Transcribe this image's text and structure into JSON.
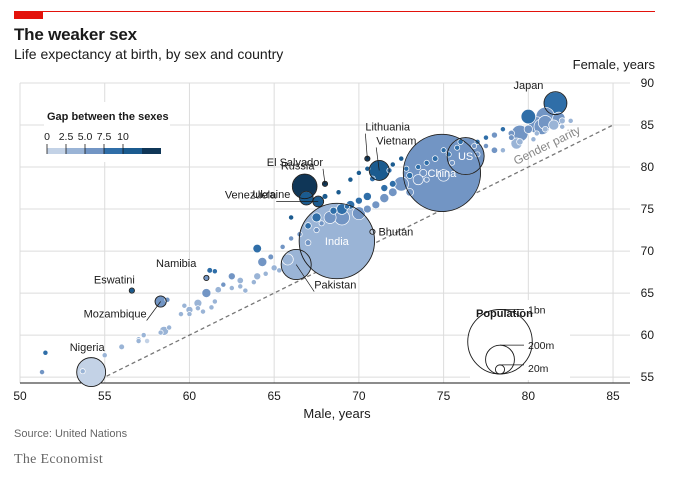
{
  "title": "The weaker sex",
  "subtitle": "Life expectancy at birth, by sex and country",
  "source": "Source: United Nations",
  "brand": "The Economist",
  "colors": {
    "accent": "#e3120b",
    "gap_scale": [
      "#c3d2e6",
      "#9ab4d6",
      "#7295c4",
      "#2f6ea8",
      "#1b5b8f",
      "#0f3657"
    ]
  },
  "chart_data": {
    "type": "scatter",
    "title": "The weaker sex",
    "subtitle": "Life expectancy at birth, by sex and country",
    "xlabel": "Male, years",
    "ylabel": "Female, years",
    "xlim": [
      50,
      86
    ],
    "ylim": [
      54.3,
      90
    ],
    "x_ticks": [
      50,
      55,
      60,
      65,
      70,
      75,
      80,
      85
    ],
    "y_ticks": [
      55,
      60,
      65,
      70,
      75,
      80,
      85,
      90
    ],
    "grid": true,
    "reference_line": {
      "label": "Gender parity",
      "from": 54,
      "to": 85
    },
    "gap_legend": {
      "title": "Gap between the sexes",
      "ticks": [
        "0",
        "2.5",
        "5.0",
        "7.5",
        "10"
      ]
    },
    "size_legend": {
      "title": "Population",
      "labels": [
        "1bn",
        "200m",
        "20m"
      ],
      "values_m": [
        1000,
        200,
        20
      ]
    },
    "labeled_points": [
      {
        "name": "Japan",
        "male": 81.6,
        "female": 87.6,
        "pop_m": 126,
        "gap": 6.0
      },
      {
        "name": "US",
        "male": 76.3,
        "female": 81.3,
        "pop_m": 329,
        "gap": 5.0
      },
      {
        "name": "China",
        "male": 74.9,
        "female": 79.3,
        "pop_m": 1434,
        "gap": 4.4
      },
      {
        "name": "Lithuania",
        "male": 70.5,
        "female": 81.0,
        "pop_m": 2.8,
        "gap": 10.5
      },
      {
        "name": "Vietnam",
        "male": 71.2,
        "female": 79.6,
        "pop_m": 96,
        "gap": 8.4
      },
      {
        "name": "El Salvador",
        "male": 68.0,
        "female": 78.0,
        "pop_m": 6.5,
        "gap": 10.0
      },
      {
        "name": "Russia",
        "male": 66.8,
        "female": 77.7,
        "pop_m": 146,
        "gap": 10.9
      },
      {
        "name": "Ukraine",
        "male": 66.9,
        "female": 76.3,
        "pop_m": 44,
        "gap": 9.4
      },
      {
        "name": "Venezuela",
        "male": 67.6,
        "female": 75.9,
        "pop_m": 28,
        "gap": 8.3
      },
      {
        "name": "Bhutan",
        "male": 70.8,
        "female": 72.3,
        "pop_m": 0.8,
        "gap": 1.5
      },
      {
        "name": "India",
        "male": 68.7,
        "female": 71.2,
        "pop_m": 1366,
        "gap": 2.5
      },
      {
        "name": "Pakistan",
        "male": 66.3,
        "female": 68.4,
        "pop_m": 217,
        "gap": 2.1
      },
      {
        "name": "Namibia",
        "male": 61.0,
        "female": 66.8,
        "pop_m": 2.5,
        "gap": 5.8
      },
      {
        "name": "Eswatini",
        "male": 56.6,
        "female": 65.3,
        "pop_m": 1.1,
        "gap": 8.7
      },
      {
        "name": "Mozambique",
        "male": 58.3,
        "female": 64.0,
        "pop_m": 30,
        "gap": 5.7
      },
      {
        "name": "Nigeria",
        "male": 54.2,
        "female": 55.6,
        "pop_m": 201,
        "gap": 1.4
      }
    ],
    "other_points": [
      [
        51.5,
        57.9,
        1,
        6.4
      ],
      [
        51.3,
        55.6,
        1,
        4.3
      ],
      [
        53.7,
        55.7,
        4,
        2.0
      ],
      [
        55.0,
        57.6,
        2,
        2.6
      ],
      [
        56.0,
        58.6,
        8,
        2.6
      ],
      [
        57.0,
        59.3,
        3,
        2.3
      ],
      [
        57.3,
        60.0,
        1,
        2.7
      ],
      [
        57.5,
        59.3,
        5,
        1.8
      ],
      [
        58.3,
        60.3,
        4,
        2.0
      ],
      [
        58.8,
        60.9,
        2,
        2.1
      ],
      [
        59.5,
        62.5,
        6,
        3.0
      ],
      [
        60.0,
        63.0,
        12,
        3.0
      ],
      [
        59.7,
        63.5,
        5,
        3.8
      ],
      [
        60.5,
        63.2,
        6,
        2.7
      ],
      [
        60.8,
        62.8,
        5,
        2.0
      ],
      [
        61.3,
        63.3,
        4,
        2.0
      ],
      [
        61.5,
        64.0,
        6,
        2.5
      ],
      [
        58.7,
        64.2,
        3,
        5.5
      ],
      [
        60.0,
        62.5,
        2,
        2.5
      ],
      [
        61.0,
        65.0,
        20,
        4.0
      ],
      [
        61.7,
        65.4,
        10,
        3.7
      ],
      [
        62.0,
        66.0,
        4,
        4.0
      ],
      [
        62.5,
        65.6,
        3,
        3.1
      ],
      [
        63.0,
        65.8,
        5,
        2.8
      ],
      [
        63.3,
        65.3,
        3,
        2.0
      ],
      [
        63.8,
        66.3,
        3,
        2.5
      ],
      [
        64.0,
        67.0,
        12,
        3.0
      ],
      [
        64.5,
        67.3,
        4,
        2.8
      ],
      [
        65.0,
        68.0,
        9,
        3.0
      ],
      [
        65.3,
        67.7,
        5,
        2.4
      ],
      [
        64.3,
        68.7,
        20,
        4.4
      ],
      [
        64.8,
        69.3,
        8,
        4.5
      ],
      [
        61.5,
        67.6,
        5,
        6.1
      ],
      [
        61.2,
        67.7,
        8,
        6.5
      ],
      [
        64.0,
        70.3,
        18,
        6.3
      ],
      [
        65.5,
        70.5,
        6,
        5.0
      ],
      [
        66.0,
        71.5,
        4,
        5.5
      ],
      [
        66.5,
        72.0,
        3,
        5.5
      ],
      [
        67.0,
        71.0,
        8,
        4.0
      ],
      [
        67.0,
        73.0,
        10,
        6.0
      ],
      [
        67.5,
        74.0,
        20,
        6.5
      ],
      [
        67.8,
        73.3,
        6,
        5.5
      ],
      [
        68.3,
        74.0,
        35,
        5.7
      ],
      [
        68.5,
        74.8,
        12,
        6.3
      ],
      [
        69.0,
        75.0,
        28,
        6.0
      ],
      [
        69.5,
        75.5,
        18,
        6.0
      ],
      [
        69.0,
        74.0,
        55,
        5.0
      ],
      [
        70.0,
        74.5,
        40,
        4.5
      ],
      [
        70.5,
        75.0,
        15,
        4.5
      ],
      [
        70.0,
        76.0,
        12,
        6.0
      ],
      [
        71.0,
        75.5,
        15,
        4.5
      ],
      [
        71.5,
        76.3,
        20,
        4.8
      ],
      [
        68.0,
        76.5,
        8,
        8.5
      ],
      [
        68.8,
        77.0,
        4,
        8.2
      ],
      [
        69.5,
        78.5,
        5,
        9.0
      ],
      [
        70.0,
        79.3,
        3,
        9.3
      ],
      [
        70.5,
        79.8,
        2,
        9.3
      ],
      [
        71.5,
        77.5,
        12,
        6.0
      ],
      [
        72.0,
        77.0,
        18,
        5.0
      ],
      [
        72.5,
        78.0,
        50,
        5.5
      ],
      [
        73.0,
        79.0,
        9,
        6.0
      ],
      [
        73.5,
        80.0,
        5,
        6.5
      ],
      [
        72.8,
        79.8,
        4,
        7.0
      ],
      [
        73.8,
        79.3,
        12,
        5.5
      ],
      [
        74.0,
        78.5,
        6,
        4.5
      ],
      [
        74.5,
        81.0,
        8,
        6.5
      ],
      [
        75.0,
        82.0,
        4,
        7.0
      ],
      [
        75.3,
        81.5,
        5,
        6.2
      ],
      [
        75.8,
        82.3,
        3,
        6.5
      ],
      [
        76.8,
        82.5,
        3,
        5.7
      ],
      [
        77.0,
        83.0,
        4,
        6.0
      ],
      [
        77.5,
        83.5,
        3,
        6.0
      ],
      [
        78.0,
        82.0,
        10,
        4.0
      ],
      [
        78.5,
        82.0,
        5,
        3.5
      ],
      [
        79.0,
        83.5,
        8,
        4.5
      ],
      [
        79.5,
        83.0,
        10,
        3.5
      ],
      [
        80.0,
        84.5,
        17,
        4.5
      ],
      [
        79.5,
        84.0,
        66,
        4.5
      ],
      [
        80.5,
        85.0,
        65,
        4.5
      ],
      [
        81.0,
        85.3,
        47,
        4.3
      ],
      [
        80.5,
        84.0,
        5,
        3.5
      ],
      [
        81.0,
        84.5,
        8,
        3.5
      ],
      [
        81.5,
        85.0,
        25,
        3.5
      ],
      [
        80.8,
        84.8,
        60,
        4.0
      ],
      [
        82.0,
        85.5,
        9,
        3.5
      ],
      [
        82.0,
        84.8,
        4,
        2.8
      ],
      [
        81.8,
        85.8,
        37,
        4.0
      ],
      [
        82.5,
        85.5,
        5,
        3.0
      ],
      [
        80.0,
        86.0,
        51,
        6.0
      ],
      [
        81.0,
        86.0,
        83,
        5.0
      ],
      [
        77.5,
        82.5,
        2,
        5.0
      ],
      [
        79.0,
        84.0,
        10,
        5.0
      ],
      [
        74.0,
        80.5,
        3,
        6.5
      ],
      [
        75.5,
        80.5,
        2,
        5.0
      ],
      [
        76.0,
        83.0,
        7,
        7.0
      ],
      [
        78.5,
        84.5,
        3,
        6.0
      ],
      [
        72.5,
        81.0,
        2,
        8.5
      ],
      [
        71.8,
        79.6,
        6,
        7.8
      ],
      [
        70.8,
        78.6,
        8,
        7.8
      ],
      [
        72.0,
        80.3,
        5,
        8.3
      ],
      [
        66.0,
        74.0,
        6,
        8.0
      ],
      [
        69.3,
        75.3,
        6,
        6.0
      ],
      [
        67.5,
        72.5,
        7,
        5.0
      ],
      [
        70.5,
        76.5,
        16,
        6.0
      ],
      [
        72.0,
        78.0,
        11,
        6.0
      ],
      [
        73.0,
        77.0,
        14,
        4.0
      ],
      [
        62.5,
        67.0,
        12,
        4.5
      ],
      [
        63.0,
        66.5,
        10,
        3.5
      ],
      [
        60.5,
        63.8,
        15,
        3.3
      ],
      [
        57.0,
        59.5,
        6,
        2.5
      ],
      [
        58.5,
        60.5,
        20,
        2.0
      ],
      [
        65.8,
        69.0,
        30,
        3.2
      ],
      [
        73.5,
        78.5,
        25,
        5.0
      ],
      [
        75.0,
        79.0,
        32,
        4.0
      ],
      [
        77.0,
        81.5,
        4,
        4.5
      ],
      [
        78.0,
        83.8,
        9,
        5.8
      ],
      [
        79.3,
        82.8,
        30,
        3.5
      ],
      [
        80.3,
        83.3,
        6,
        3.0
      ]
    ]
  }
}
